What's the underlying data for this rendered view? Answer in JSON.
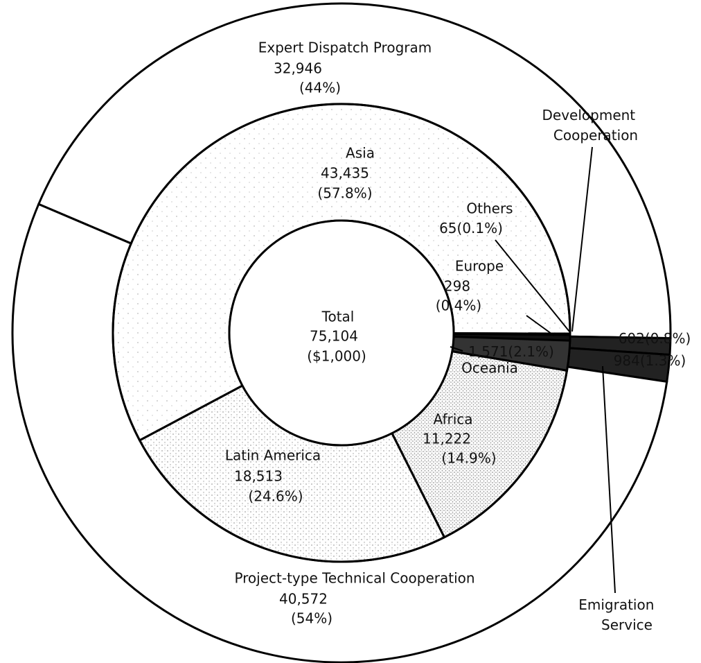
{
  "chart_data": {
    "type": "nested-donut",
    "center": {
      "label": "Total",
      "value": 75104,
      "value_label": "75,104",
      "unit": "($1,000)"
    },
    "outer_ring": {
      "categories": [
        "Expert Dispatch Program",
        "Development Cooperation",
        "Emigration Service",
        "Project-type Technical Cooperation"
      ],
      "values": [
        32946,
        602,
        984,
        40572
      ],
      "value_labels": [
        "32,946",
        "602",
        "984",
        "40,572"
      ],
      "percents": [
        44,
        0.8,
        1.3,
        54
      ],
      "percent_labels": [
        "(44%)",
        "(0.8%)",
        "(1.3%)",
        "(54%)"
      ]
    },
    "inner_ring": {
      "categories": [
        "Asia",
        "Others",
        "Europe",
        "Oceania",
        "Africa",
        "Latin America"
      ],
      "values": [
        43435,
        65,
        298,
        1571,
        11222,
        18513
      ],
      "value_labels": [
        "43,435",
        "65",
        "298",
        "1,571",
        "11,222",
        "18,513"
      ],
      "percents": [
        57.8,
        0.1,
        0.4,
        2.1,
        14.9,
        24.6
      ],
      "percent_labels": [
        "(57.8%)",
        "(0.1%)",
        "(0.4%)",
        "(2.1%)",
        "(14.9%)",
        "(24.6%)"
      ]
    }
  }
}
